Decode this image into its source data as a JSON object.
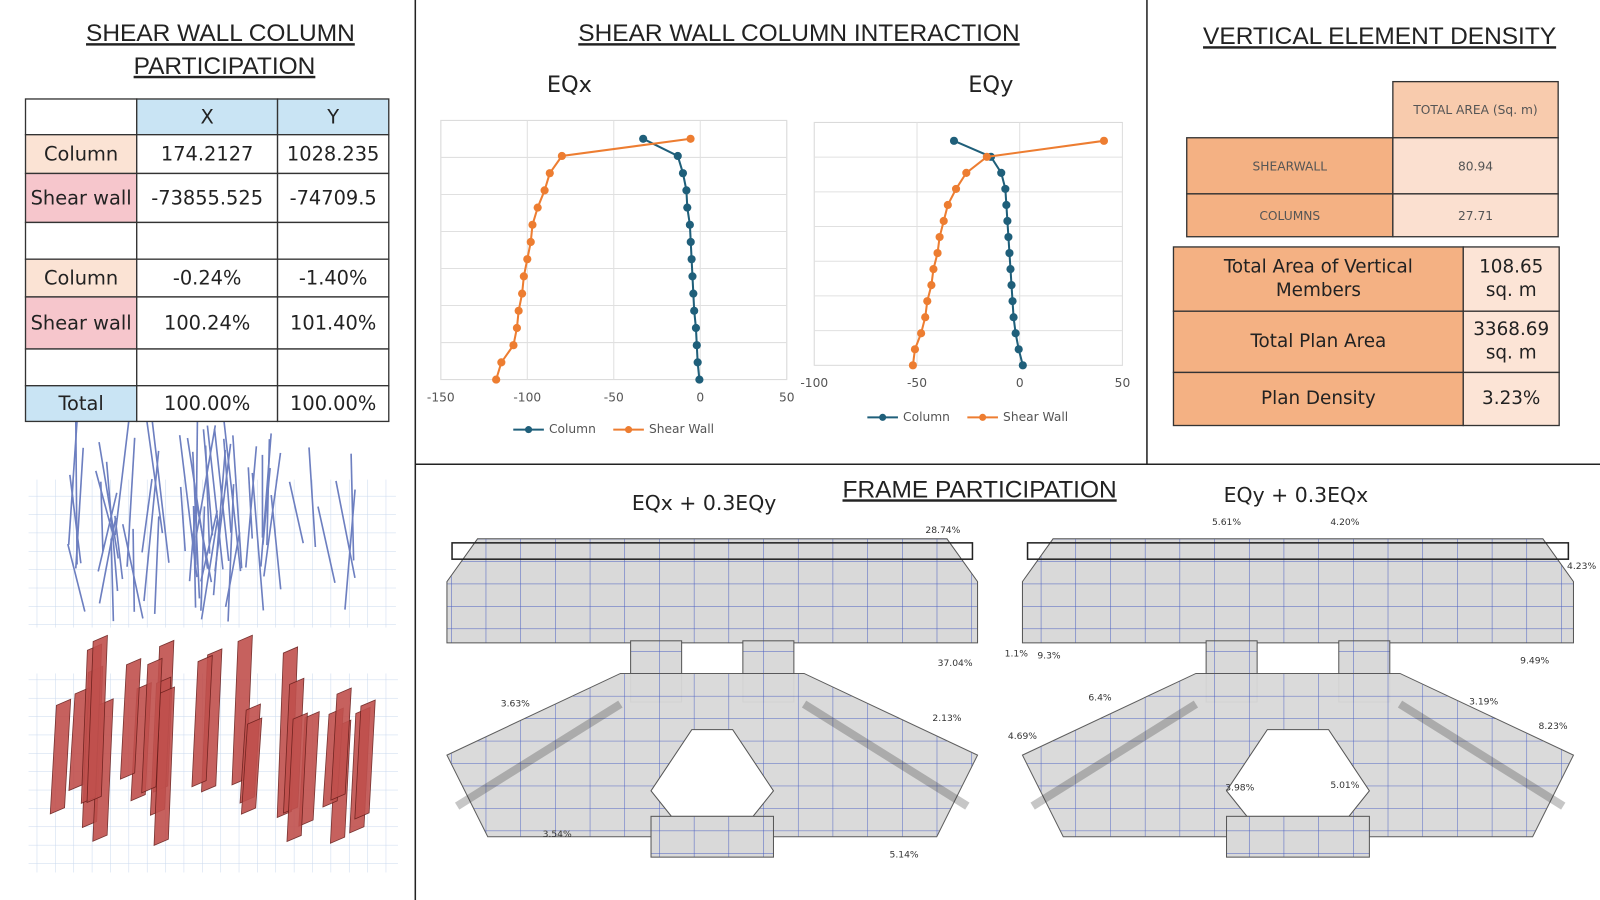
{
  "participation": {
    "title": [
      "SHEAR WALL COLUMN",
      "PARTICIPATION"
    ],
    "columns": [
      "X",
      "Y"
    ],
    "rows": [
      {
        "label": "Column",
        "color": "#fbe3d4",
        "values": [
          "174.2127",
          "1028.235"
        ]
      },
      {
        "label": "Shear wall",
        "color": "#f6c6cc",
        "values": [
          "-73855.525",
          "-74709.5"
        ]
      },
      {
        "label": "Column",
        "color": "#fbe3d4",
        "values": [
          "-0.24%",
          "-1.40%"
        ]
      },
      {
        "label": "Shear wall",
        "color": "#f6c6cc",
        "values": [
          "100.24%",
          "101.40%"
        ]
      },
      {
        "label": "Total",
        "color": "#c9e4f4",
        "values": [
          "100.00%",
          "100.00%"
        ]
      }
    ]
  },
  "interaction_title": "SHEAR WALL COLUMN INTERACTION",
  "chart_data": [
    {
      "type": "line",
      "orientation": "horizontal",
      "title": "EQx",
      "categories": [
        null,
        null,
        null,
        null,
        null,
        null,
        null,
        null,
        null,
        null,
        null,
        null,
        null,
        null,
        null
      ],
      "series": [
        {
          "name": "Column",
          "color": "#1f5f7a",
          "values": [
            -33,
            -13,
            -10,
            -8,
            -7.5,
            -6,
            -5.5,
            -5,
            -4.5,
            -4,
            -3.5,
            -2.5,
            -2,
            -1.5,
            -0.5
          ]
        },
        {
          "name": "Shear Wall",
          "color": "#ed7d31",
          "values": [
            -5.6,
            -80,
            -87,
            -90,
            -94,
            -97,
            -98,
            -100,
            -102,
            -103,
            -105,
            -106,
            -108,
            -115,
            -118
          ]
        }
      ],
      "xlim": [
        -150,
        50
      ],
      "xticks": [
        -150,
        -100,
        -50,
        0,
        50
      ],
      "grid": true,
      "legend": "bottom"
    },
    {
      "type": "line",
      "orientation": "horizontal",
      "title": "EQy",
      "categories": [
        null,
        null,
        null,
        null,
        null,
        null,
        null,
        null,
        null,
        null,
        null,
        null,
        null,
        null,
        null
      ],
      "series": [
        {
          "name": "Column",
          "color": "#1f5f7a",
          "values": [
            -32,
            -14,
            -9,
            -7,
            -6.5,
            -6,
            -5.5,
            -5,
            -4.5,
            -4,
            -3.5,
            -3,
            -2,
            -0.5,
            1.5
          ]
        },
        {
          "name": "Shear Wall",
          "color": "#ed7d31",
          "values": [
            41,
            -16,
            -26,
            -31,
            -35,
            -37,
            -39,
            -40,
            -42,
            -43,
            -45,
            -46,
            -48,
            -51,
            -52
          ]
        }
      ],
      "xlim": [
        -100,
        50
      ],
      "xticks": [
        -100,
        -50,
        0,
        50
      ],
      "grid": true,
      "legend": "bottom"
    }
  ],
  "density": {
    "title": "VERTICAL ELEMENT DENSITY",
    "header": "TOTAL AREA (Sq. m)",
    "rows": [
      [
        "SHEARWALL",
        "80.94"
      ],
      [
        "COLUMNS",
        "27.71"
      ]
    ],
    "summary": [
      [
        "Total Area of Vertical Members",
        "108.65 sq. m"
      ],
      [
        "Total Plan Area",
        "3368.69 sq. m"
      ],
      [
        "Plan Density",
        "3.23%"
      ]
    ]
  },
  "frame": {
    "title": "FRAME PARTICIPATION",
    "plans": [
      {
        "title": "EQx + 0.3EQy",
        "labels": [
          "28.74%",
          "37.04%",
          "3.63%",
          "2.13%",
          "3.54%",
          "5.14%"
        ]
      },
      {
        "title": "EQy + 0.3EQx",
        "labels": [
          "5.61%",
          "4.20%",
          "4.23%",
          "1.1%",
          "9.3%",
          "9.49%",
          "6.4%",
          "3.19%",
          "4.69%",
          "8.23%",
          "3.98%",
          "5.01%"
        ]
      }
    ]
  }
}
